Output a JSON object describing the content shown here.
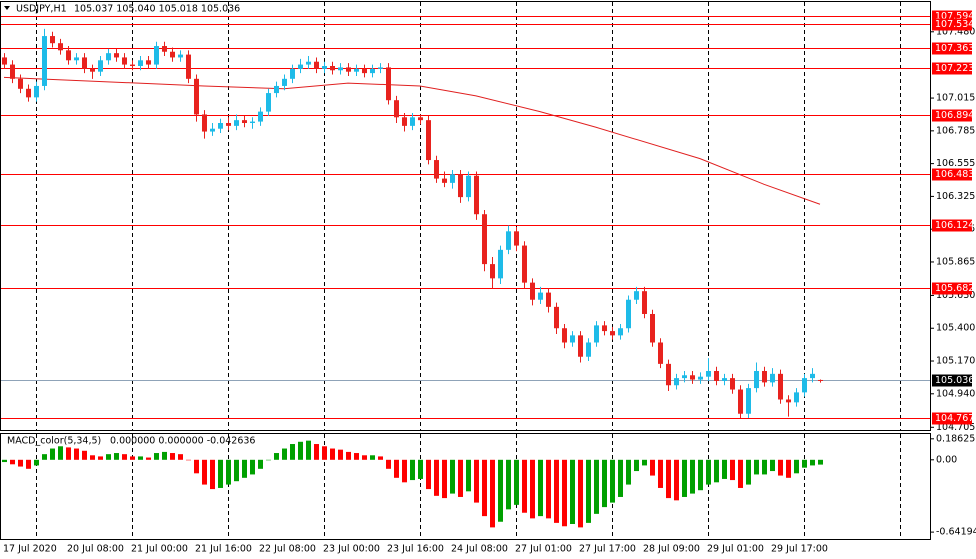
{
  "chart_data": {
    "type": "candlestick",
    "title": "USDJPY,H1",
    "quote": "105.037 105.040 105.018 105.036",
    "categories": [
      "17 Jul 2020",
      null,
      null,
      null,
      null,
      null,
      null,
      null,
      "20 Jul 08:00",
      null,
      null,
      null,
      null,
      null,
      null,
      null,
      "21 Jul 00:00",
      null,
      null,
      null,
      null,
      null,
      null,
      null,
      "21 Jul 16:00",
      null,
      null,
      null,
      null,
      null,
      null,
      null,
      "22 Jul 08:00",
      null,
      null,
      null,
      null,
      null,
      null,
      null,
      "23 Jul 00:00",
      null,
      null,
      null,
      null,
      null,
      null,
      null,
      "23 Jul 16:00",
      null,
      null,
      null,
      null,
      null,
      null,
      null,
      "24 Jul 08:00",
      null,
      null,
      null,
      null,
      null,
      null,
      null,
      "27 Jul 01:00",
      null,
      null,
      null,
      null,
      null,
      null,
      null,
      "27 Jul 17:00",
      null,
      null,
      null,
      null,
      null,
      null,
      null,
      "28 Jul 09:00",
      null,
      null,
      null,
      null,
      null,
      null,
      null,
      "29 Jul 01:00",
      null,
      null,
      null,
      null,
      null,
      null,
      null,
      "29 Jul 17:00",
      null,
      null,
      null,
      null,
      null,
      null
    ],
    "open": [
      107.3,
      107.25,
      107.15,
      107.08,
      107.02,
      107.1,
      107.45,
      107.4,
      107.35,
      107.28,
      107.3,
      107.22,
      107.2,
      107.28,
      107.33,
      107.3,
      107.25,
      107.24,
      107.28,
      107.25,
      107.38,
      107.34,
      107.3,
      107.32,
      107.15,
      106.9,
      106.78,
      106.8,
      106.84,
      106.82,
      106.86,
      106.84,
      106.85,
      106.92,
      107.05,
      107.1,
      107.15,
      107.22,
      107.25,
      107.27,
      107.22,
      107.24,
      107.21,
      107.23,
      107.2,
      107.22,
      107.19,
      107.22,
      107.23,
      107.0,
      106.88,
      106.82,
      106.88,
      106.86,
      106.58,
      106.45,
      106.42,
      106.48,
      106.32,
      106.47,
      106.2,
      105.85,
      105.75,
      105.95,
      106.08,
      105.98,
      105.72,
      105.6,
      105.65,
      105.55,
      105.4,
      105.3,
      105.35,
      105.2,
      105.3,
      105.42,
      105.38,
      105.35,
      105.4,
      105.6,
      105.66,
      105.5,
      105.3,
      105.15,
      105.0,
      105.05,
      105.07,
      105.04,
      105.06,
      105.1,
      105.03,
      105.05,
      104.97,
      104.8,
      104.98,
      105.1,
      105.02,
      105.08,
      104.9,
      104.88,
      104.95,
      105.05,
      105.037
    ],
    "high": [
      107.33,
      107.28,
      107.18,
      107.11,
      107.13,
      107.5,
      107.48,
      107.43,
      107.38,
      107.33,
      107.33,
      107.25,
      107.31,
      107.36,
      107.36,
      107.33,
      107.28,
      107.31,
      107.31,
      107.41,
      107.41,
      107.37,
      107.35,
      107.35,
      107.18,
      106.93,
      106.84,
      106.87,
      106.88,
      106.9,
      106.89,
      106.88,
      106.95,
      107.08,
      107.13,
      107.18,
      107.25,
      107.29,
      107.31,
      107.3,
      107.27,
      107.27,
      107.26,
      107.26,
      107.25,
      107.25,
      107.25,
      107.26,
      107.26,
      107.03,
      106.91,
      106.91,
      106.9,
      106.89,
      106.61,
      106.5,
      106.51,
      106.51,
      106.5,
      106.5,
      106.23,
      105.9,
      105.98,
      106.12,
      106.11,
      106.01,
      105.75,
      105.69,
      105.68,
      105.58,
      105.43,
      105.38,
      105.38,
      105.33,
      105.45,
      105.45,
      105.41,
      105.43,
      105.63,
      105.69,
      105.69,
      105.53,
      105.33,
      105.18,
      105.08,
      105.1,
      105.1,
      105.09,
      105.19,
      105.13,
      105.08,
      105.08,
      105.0,
      105.01,
      105.16,
      105.13,
      105.12,
      105.11,
      104.93,
      104.98,
      105.08,
      105.12,
      105.04
    ],
    "low": [
      107.22,
      107.12,
      107.05,
      106.99,
      106.99,
      107.07,
      107.37,
      107.32,
      107.25,
      107.25,
      107.19,
      107.15,
      107.17,
      107.25,
      107.27,
      107.22,
      107.21,
      107.21,
      107.22,
      107.22,
      107.31,
      107.27,
      107.27,
      107.12,
      106.85,
      106.73,
      106.75,
      106.77,
      106.79,
      106.79,
      106.81,
      106.8,
      106.82,
      106.89,
      107.02,
      107.07,
      107.12,
      107.19,
      107.22,
      107.19,
      107.19,
      107.18,
      107.18,
      107.17,
      107.17,
      107.16,
      107.16,
      107.19,
      106.97,
      106.84,
      106.78,
      106.79,
      106.83,
      106.55,
      106.42,
      106.39,
      106.38,
      106.28,
      106.29,
      106.16,
      105.8,
      105.68,
      105.71,
      105.92,
      105.94,
      105.68,
      105.56,
      105.57,
      105.51,
      105.36,
      105.26,
      105.27,
      105.16,
      105.17,
      105.27,
      105.35,
      105.32,
      105.32,
      105.37,
      105.57,
      105.47,
      105.27,
      105.12,
      104.96,
      104.97,
      105.02,
      105.01,
      105.01,
      105.03,
      105.0,
      105.0,
      104.94,
      104.77,
      104.77,
      104.95,
      104.99,
      104.99,
      104.87,
      104.78,
      104.85,
      104.92,
      105.02,
      105.018
    ],
    "close": [
      107.25,
      107.15,
      107.08,
      107.02,
      107.1,
      107.45,
      107.4,
      107.35,
      107.28,
      107.3,
      107.22,
      107.2,
      107.28,
      107.33,
      107.3,
      107.25,
      107.24,
      107.28,
      107.25,
      107.38,
      107.34,
      107.3,
      107.32,
      107.15,
      106.9,
      106.78,
      106.8,
      106.84,
      106.82,
      106.86,
      106.84,
      106.85,
      106.92,
      107.05,
      107.1,
      107.15,
      107.22,
      107.25,
      107.27,
      107.22,
      107.24,
      107.21,
      107.23,
      107.2,
      107.22,
      107.19,
      107.22,
      107.23,
      107.0,
      106.88,
      106.82,
      106.88,
      106.86,
      106.58,
      106.45,
      106.42,
      106.48,
      106.32,
      106.47,
      106.2,
      105.85,
      105.75,
      105.95,
      106.08,
      105.98,
      105.72,
      105.6,
      105.65,
      105.55,
      105.4,
      105.3,
      105.35,
      105.2,
      105.3,
      105.42,
      105.38,
      105.35,
      105.4,
      105.6,
      105.66,
      105.5,
      105.3,
      105.15,
      105.0,
      105.05,
      105.07,
      105.04,
      105.06,
      105.1,
      105.03,
      105.05,
      104.97,
      104.8,
      104.98,
      105.1,
      105.02,
      105.08,
      104.9,
      104.88,
      104.95,
      105.05,
      105.08,
      105.036
    ],
    "up_color": "#1ebbe8",
    "down_color": "#e8221e",
    "ylim": [
      104.686,
      107.689
    ],
    "yticks": [
      {
        "value": 107.48,
        "label": "107.480"
      },
      107.015,
      106.785,
      106.555,
      106.325,
      106.095,
      105.865,
      {
        "value": 105.63,
        "label": "105.630"
      },
      {
        "value": 105.4,
        "label": "105.400"
      },
      {
        "value": 105.17,
        "label": "105.170"
      },
      {
        "value": 104.94,
        "label": "104.940"
      },
      104.705
    ],
    "levels": [
      107.594,
      107.534,
      107.363,
      107.223,
      106.894,
      106.483,
      106.124,
      105.682,
      104.767
    ],
    "level_color": "#ff0000",
    "current_price": 105.036,
    "moving_average": {
      "color": "#e02020",
      "x": [
        0,
        25,
        35,
        43,
        52,
        59,
        67,
        74,
        87,
        95,
        102
      ],
      "values": [
        107.16,
        107.1,
        107.08,
        107.12,
        107.1,
        107.03,
        106.92,
        106.81,
        106.59,
        106.41,
        106.27
      ]
    },
    "macd": {
      "title": "MACD_color(5,34,5)",
      "readout": "0.000000 0.000000 -0.042636",
      "up_color": "#00a000",
      "down_color": "#ff0000",
      "values": [
        -0.02,
        -0.04,
        -0.06,
        -0.08,
        -0.05,
        0.05,
        0.1,
        0.12,
        0.11,
        0.1,
        0.08,
        0.04,
        0.03,
        0.05,
        0.06,
        0.05,
        0.03,
        0.03,
        0.02,
        0.06,
        0.07,
        0.06,
        0.05,
        0.0,
        -0.12,
        -0.22,
        -0.26,
        -0.25,
        -0.22,
        -0.19,
        -0.16,
        -0.13,
        -0.08,
        0.0,
        0.06,
        0.1,
        0.14,
        0.16,
        0.17,
        0.14,
        0.12,
        0.1,
        0.09,
        0.07,
        0.06,
        0.04,
        0.04,
        0.03,
        -0.08,
        -0.16,
        -0.2,
        -0.18,
        -0.17,
        -0.26,
        -0.32,
        -0.34,
        -0.3,
        -0.33,
        -0.28,
        -0.38,
        -0.5,
        -0.6,
        -0.55,
        -0.44,
        -0.4,
        -0.47,
        -0.52,
        -0.5,
        -0.52,
        -0.56,
        -0.59,
        -0.57,
        -0.6,
        -0.56,
        -0.48,
        -0.42,
        -0.38,
        -0.33,
        -0.22,
        -0.1,
        -0.05,
        -0.14,
        -0.25,
        -0.34,
        -0.36,
        -0.33,
        -0.3,
        -0.27,
        -0.22,
        -0.2,
        -0.17,
        -0.18,
        -0.25,
        -0.22,
        -0.13,
        -0.13,
        -0.1,
        -0.14,
        -0.16,
        -0.12,
        -0.07,
        -0.05,
        -0.042636
      ],
      "ylim": [
        -0.712,
        0.229
      ],
      "yticks": [
        0.18625,
        {
          "value": 0,
          "label": "0.00"
        },
        -0.641949
      ]
    }
  }
}
